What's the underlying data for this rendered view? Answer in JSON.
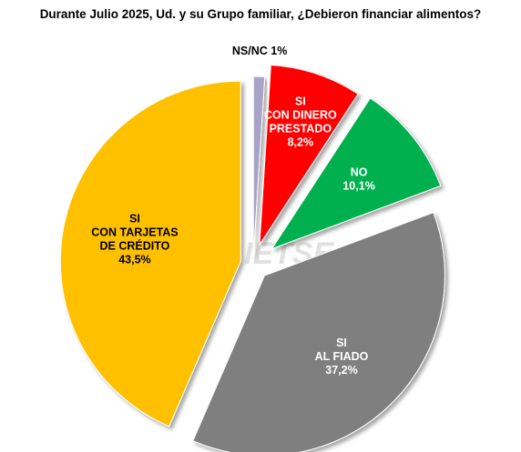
{
  "chart_data": {
    "type": "pie",
    "title": "Durante Julio 2025, Ud. y su Grupo familiar, ¿Debieron financiar alimentos?",
    "slices": [
      {
        "label_lines": [
          "NS/NC 1%"
        ],
        "value": 1.0,
        "color": "#a9a3c8",
        "text_color": "#000000"
      },
      {
        "label_lines": [
          "SI",
          "CON DINERO",
          "PRESTADO",
          "8,2%"
        ],
        "value": 8.2,
        "color": "#ff0000",
        "text_color": "#ffffff"
      },
      {
        "label_lines": [
          "NO",
          "10,1%"
        ],
        "value": 10.1,
        "color": "#00b050",
        "text_color": "#ffffff"
      },
      {
        "label_lines": [
          "SI",
          "AL FIADO",
          "37,2%"
        ],
        "value": 37.2,
        "color": "#7f7f7f",
        "text_color": "#ffffff"
      },
      {
        "label_lines": [
          "SI",
          "CON TARJETAS",
          "DE CRÉDITO",
          "43,5%"
        ],
        "value": 43.5,
        "color": "#ffc000",
        "text_color": "#000000"
      }
    ],
    "watermark": "IETSE",
    "legend": "none"
  }
}
